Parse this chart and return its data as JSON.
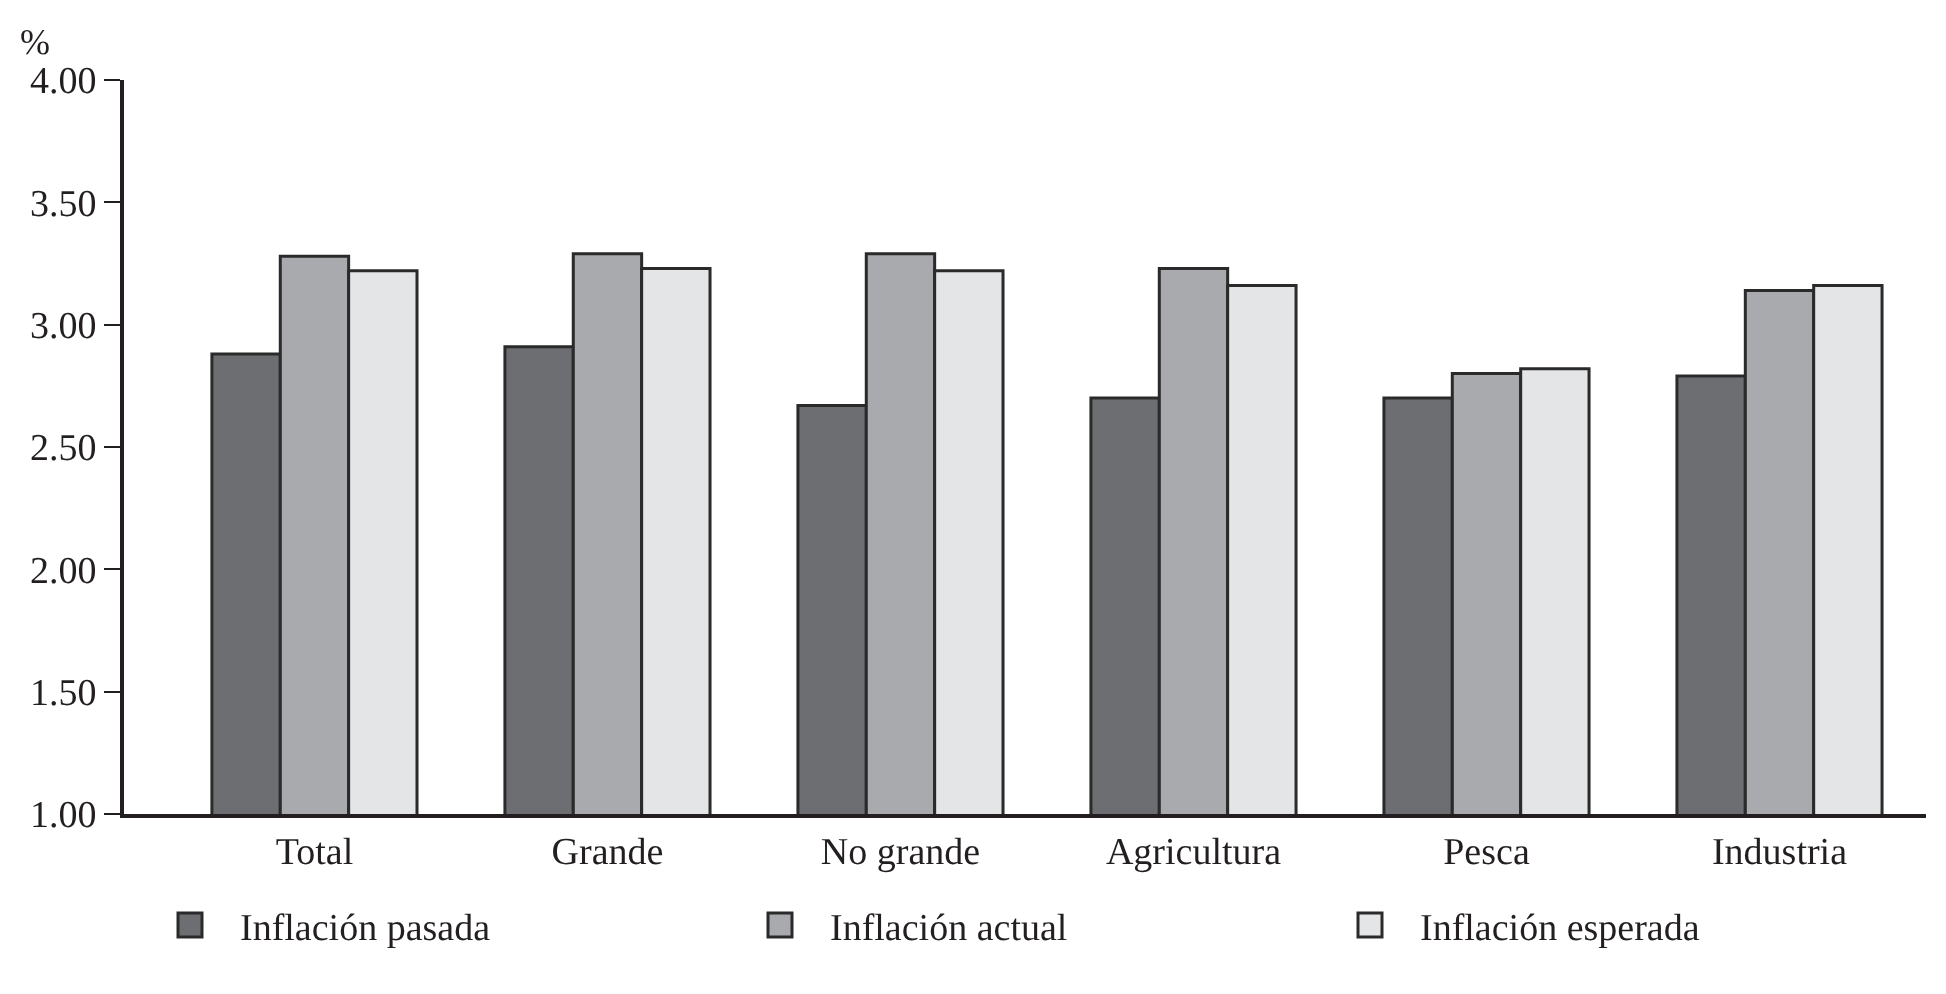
{
  "chart_data": {
    "type": "bar",
    "ylabel": "%",
    "categories": [
      "Total",
      "Grande",
      "No grande",
      "Agricultura",
      "Pesca",
      "Industria"
    ],
    "series": [
      {
        "name": "Inflación pasada",
        "color": "#6d6e72",
        "values": [
          2.88,
          2.91,
          2.67,
          2.7,
          2.7,
          2.79
        ]
      },
      {
        "name": "Inflación actual",
        "color": "#a9aaad",
        "values": [
          3.28,
          3.29,
          3.29,
          3.23,
          2.8,
          3.14
        ]
      },
      {
        "name": "Inflación esperada",
        "color": "#e4e5e7",
        "values": [
          3.22,
          3.23,
          3.22,
          3.16,
          2.82,
          3.16
        ]
      }
    ],
    "ylim": [
      1.0,
      4.0
    ],
    "yticks": [
      {
        "value": 1.0,
        "label": "1.00"
      },
      {
        "value": 1.5,
        "label": "1.50"
      },
      {
        "value": 2.0,
        "label": "2.00"
      },
      {
        "value": 2.5,
        "label": "2.50"
      },
      {
        "value": 3.0,
        "label": "3.00"
      },
      {
        "value": 3.5,
        "label": "3.50"
      },
      {
        "value": 4.0,
        "label": "4.00"
      }
    ],
    "legend": "bottom"
  }
}
